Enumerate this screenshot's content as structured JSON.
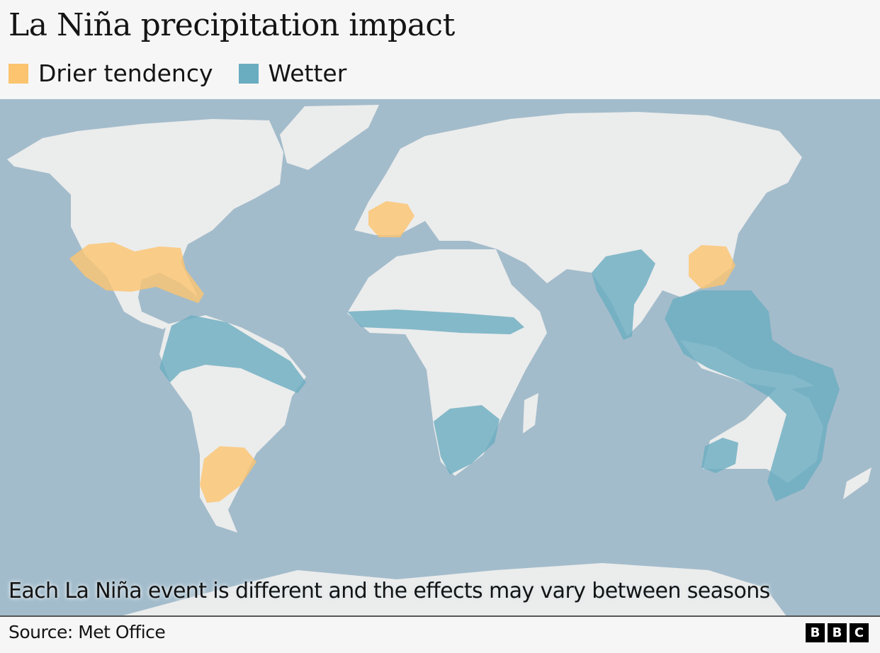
{
  "header": {
    "title": "La Niña precipitation impact"
  },
  "legend": [
    {
      "label": "Drier tendency",
      "color": "#fcc46f"
    },
    {
      "label": "Wetter",
      "color": "#6aacc0"
    }
  ],
  "map": {
    "ocean_color": "#a3bccb",
    "land_color": "#ebecec"
  },
  "note": "Each La Niña event is different and the effects may vary between seasons",
  "footer": {
    "source": "Source: Met Office",
    "logo": [
      "B",
      "B",
      "C"
    ]
  }
}
